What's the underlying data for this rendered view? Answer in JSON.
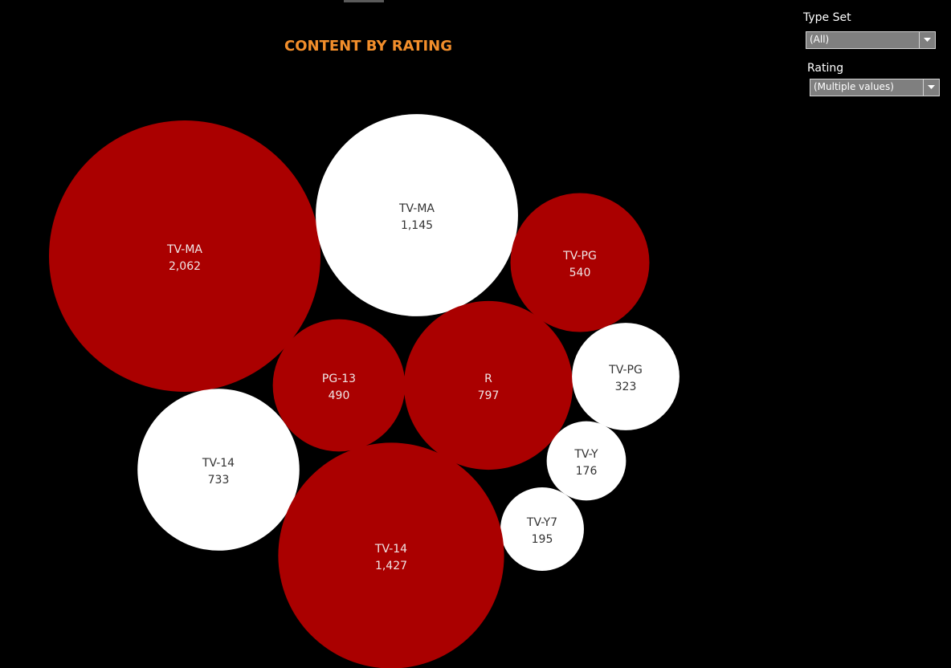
{
  "filters": {
    "type_set": {
      "label": "Type Set",
      "value": "(All)"
    },
    "rating": {
      "label": "Rating",
      "value": "(Multiple values)"
    }
  },
  "colors": {
    "background": "#000000",
    "title": "#f28e2b",
    "movie": "#aa0000",
    "tv_show": "#ffffff",
    "label_on_movie": "#f0e6e6",
    "label_on_tv_show": "#333333"
  },
  "chart_data": {
    "type": "packed-bubble",
    "title": "CONTENT BY RATING",
    "color_encoding": "two unlabeled groups: dark red and white",
    "bubbles": [
      {
        "label": "TV-MA",
        "value": 2062,
        "display": "2,062",
        "color": "red"
      },
      {
        "label": "TV-MA",
        "value": 1145,
        "display": "1,145",
        "color": "white"
      },
      {
        "label": "TV-PG",
        "value": 540,
        "display": "540",
        "color": "red"
      },
      {
        "label": "PG-13",
        "value": 490,
        "display": "490",
        "color": "red"
      },
      {
        "label": "R",
        "value": 797,
        "display": "797",
        "color": "red"
      },
      {
        "label": "TV-PG",
        "value": 323,
        "display": "323",
        "color": "white"
      },
      {
        "label": "TV-14",
        "value": 733,
        "display": "733",
        "color": "white"
      },
      {
        "label": "TV-Y",
        "value": 176,
        "display": "176",
        "color": "white"
      },
      {
        "label": "TV-Y7",
        "value": 195,
        "display": "195",
        "color": "white"
      },
      {
        "label": "TV-14",
        "value": 1427,
        "display": "1,427",
        "color": "red"
      }
    ]
  }
}
